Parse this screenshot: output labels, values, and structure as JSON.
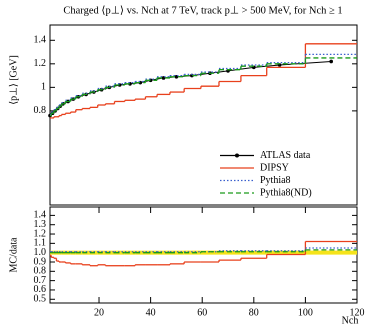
{
  "chart_data": [
    {
      "type": "line",
      "title": "Charged ⟨p⊥⟩ vs. Nch at 7 TeV, track p⊥ > 500 MeV, for Nch ≥ 1",
      "ylabel": "⟨p⊥⟩ [GeV]",
      "x": [
        1,
        2,
        3,
        4,
        5,
        6,
        8,
        10,
        12,
        15,
        18,
        21,
        24,
        28,
        32,
        36,
        40,
        45,
        50,
        56,
        63,
        70,
        80,
        90,
        110
      ],
      "xlim": [
        1,
        120
      ],
      "ylim": [
        0,
        1.53
      ],
      "yticks": [
        0.8,
        1,
        1.2,
        1.4
      ],
      "legend": "lower right",
      "series": [
        {
          "name": "ATLAS data",
          "color": "#000000",
          "style": "points",
          "values": [
            0.76,
            0.78,
            0.8,
            0.82,
            0.84,
            0.86,
            0.88,
            0.9,
            0.92,
            0.94,
            0.96,
            0.98,
            1.0,
            1.02,
            1.03,
            1.04,
            1.06,
            1.08,
            1.09,
            1.1,
            1.12,
            1.14,
            1.17,
            1.19,
            1.22
          ]
        },
        {
          "name": "DIPSY",
          "color": "#e8401c",
          "style": "solid",
          "values": [
            0.74,
            0.74,
            0.75,
            0.75,
            0.76,
            0.77,
            0.78,
            0.79,
            0.81,
            0.82,
            0.83,
            0.85,
            0.86,
            0.88,
            0.89,
            0.9,
            0.92,
            0.94,
            0.96,
            0.99,
            1.01,
            1.05,
            1.1,
            1.17,
            1.37
          ]
        },
        {
          "name": "Pythia8",
          "color": "#3a5fcd",
          "style": "dotted",
          "values": [
            0.77,
            0.79,
            0.81,
            0.83,
            0.85,
            0.87,
            0.89,
            0.91,
            0.93,
            0.95,
            0.97,
            0.99,
            1.01,
            1.03,
            1.04,
            1.05,
            1.07,
            1.09,
            1.1,
            1.11,
            1.13,
            1.16,
            1.19,
            1.21,
            1.28
          ]
        },
        {
          "name": "Pythia8(ND)",
          "color": "#1a9a1a",
          "style": "dashed",
          "values": [
            0.76,
            0.78,
            0.8,
            0.82,
            0.84,
            0.86,
            0.88,
            0.9,
            0.92,
            0.94,
            0.96,
            0.98,
            1.0,
            1.02,
            1.03,
            1.04,
            1.06,
            1.08,
            1.09,
            1.1,
            1.12,
            1.15,
            1.18,
            1.2,
            1.25
          ]
        }
      ]
    },
    {
      "type": "line",
      "ylabel": "MC/data",
      "xlabel": "Nch",
      "x": [
        1,
        2,
        3,
        4,
        5,
        6,
        8,
        10,
        12,
        15,
        18,
        21,
        24,
        28,
        32,
        36,
        40,
        45,
        50,
        56,
        63,
        70,
        80,
        90,
        110
      ],
      "xlim": [
        1,
        120
      ],
      "xticks": [
        20,
        40,
        60,
        80,
        100,
        120
      ],
      "ylim": [
        0.46,
        1.49
      ],
      "yticks": [
        0.5,
        0.6,
        0.7,
        0.8,
        0.9,
        {
          "value": 1,
          "label": "1.0"
        },
        1.1,
        1.2,
        1.3,
        1.4
      ],
      "series": [
        {
          "color": "#f5e31a",
          "style": "band",
          "values": [
            1,
            1,
            1,
            1,
            1,
            1,
            1,
            1,
            1,
            1,
            1,
            1,
            1,
            1,
            1,
            1,
            1,
            1,
            1,
            1,
            1,
            1,
            1,
            1,
            1
          ]
        },
        {
          "color": "#e8401c",
          "style": "solid",
          "values": [
            0.97,
            0.95,
            0.94,
            0.91,
            0.9,
            0.9,
            0.89,
            0.88,
            0.88,
            0.87,
            0.86,
            0.87,
            0.86,
            0.86,
            0.86,
            0.87,
            0.87,
            0.87,
            0.88,
            0.9,
            0.9,
            0.92,
            0.94,
            0.98,
            1.12
          ]
        },
        {
          "color": "#3a5fcd",
          "style": "dotted",
          "values": [
            1.01,
            1.01,
            1.01,
            1.01,
            1.01,
            1.01,
            1.01,
            1.01,
            1.01,
            1.01,
            1.01,
            1.01,
            1.01,
            1.01,
            1.01,
            1.01,
            1.01,
            1.01,
            1.01,
            1.01,
            1.01,
            1.02,
            1.02,
            1.02,
            1.05
          ]
        },
        {
          "color": "#1a9a1a",
          "style": "dashed",
          "values": [
            1.0,
            1.0,
            1.0,
            1.0,
            1.0,
            1.0,
            1.0,
            1.0,
            1.0,
            1.0,
            1.0,
            1.0,
            1.0,
            1.0,
            1.0,
            1.0,
            1.0,
            1.0,
            1.0,
            1.0,
            1.01,
            1.01,
            1.01,
            1.01,
            1.03
          ]
        }
      ]
    }
  ]
}
